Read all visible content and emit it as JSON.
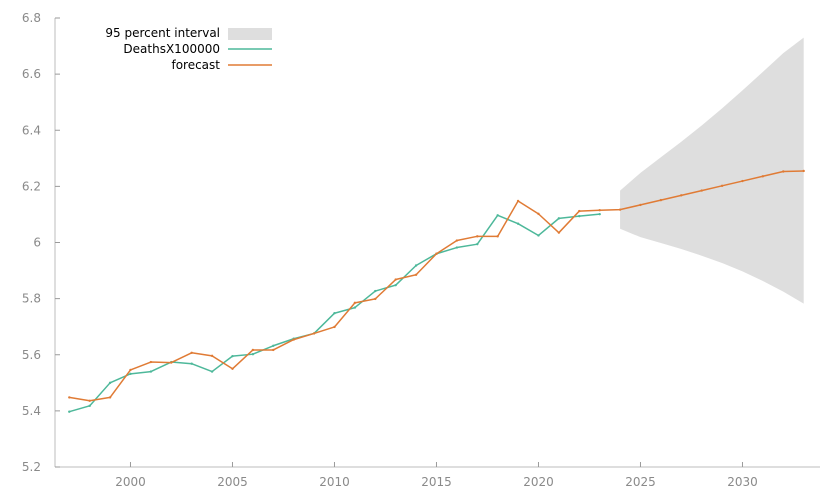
{
  "chart_data": {
    "type": "line",
    "title": "",
    "xlabel": "",
    "ylabel": "",
    "xlim": [
      1996.3,
      2033.8
    ],
    "ylim": [
      5.2,
      6.8
    ],
    "x_ticks": [
      2000,
      2005,
      2010,
      2015,
      2020,
      2025,
      2030
    ],
    "y_ticks": [
      5.2,
      5.4,
      5.6,
      5.8,
      6,
      6.2,
      6.4,
      6.6,
      6.8
    ],
    "y_tick_labels": [
      "5.2",
      "5.4",
      "5.6",
      "5.8",
      "6",
      "6.2",
      "6.4",
      "6.6",
      "6.8"
    ],
    "grid": false,
    "legend_position": "top-left",
    "legend": [
      {
        "label": "95 percent interval",
        "kind": "band",
        "color": "#dedede"
      },
      {
        "label": "DeathsX100000",
        "kind": "line",
        "color": "#4db89a"
      },
      {
        "label": "forecast",
        "kind": "line",
        "color": "#e07b35"
      }
    ],
    "series": [
      {
        "name": "DeathsX100000",
        "color": "#4db89a",
        "x": [
          1997,
          1998,
          1999,
          2000,
          2001,
          2002,
          2003,
          2004,
          2005,
          2006,
          2007,
          2008,
          2009,
          2010,
          2011,
          2012,
          2013,
          2014,
          2015,
          2016,
          2017,
          2018,
          2019,
          2020,
          2021,
          2022,
          2023
        ],
        "y": [
          5.397,
          5.418,
          5.5,
          5.532,
          5.54,
          5.574,
          5.568,
          5.54,
          5.595,
          5.602,
          5.632,
          5.657,
          5.676,
          5.748,
          5.768,
          5.827,
          5.848,
          5.918,
          5.96,
          5.982,
          5.994,
          6.097,
          6.067,
          6.025,
          6.086,
          6.094,
          6.101
        ]
      },
      {
        "name": "forecast",
        "color": "#e07b35",
        "x": [
          1997,
          1998,
          1999,
          2000,
          2001,
          2002,
          2003,
          2004,
          2005,
          2006,
          2007,
          2008,
          2009,
          2010,
          2011,
          2012,
          2013,
          2014,
          2015,
          2016,
          2017,
          2018,
          2019,
          2020,
          2021,
          2022,
          2023,
          2024,
          2025,
          2026,
          2027,
          2028,
          2029,
          2030,
          2031,
          2032,
          2033
        ],
        "y": [
          5.448,
          5.436,
          5.448,
          5.546,
          5.574,
          5.572,
          5.607,
          5.596,
          5.55,
          5.617,
          5.617,
          5.654,
          5.676,
          5.699,
          5.785,
          5.799,
          5.868,
          5.885,
          5.96,
          6.007,
          6.022,
          6.022,
          6.148,
          6.102,
          6.035,
          6.112,
          6.115,
          6.117,
          6.134,
          6.151,
          6.168,
          6.185,
          6.202,
          6.219,
          6.236,
          6.253,
          6.255
        ]
      }
    ],
    "interval": {
      "name": "95 percent interval",
      "color": "#dedede",
      "x": [
        2024,
        2025,
        2026,
        2027,
        2028,
        2029,
        2030,
        2031,
        2032,
        2033
      ],
      "upper": [
        6.185,
        6.248,
        6.304,
        6.359,
        6.417,
        6.478,
        6.542,
        6.608,
        6.675,
        6.73
      ],
      "lower": [
        6.049,
        6.019,
        5.998,
        5.977,
        5.953,
        5.927,
        5.897,
        5.863,
        5.825,
        5.782
      ]
    }
  }
}
